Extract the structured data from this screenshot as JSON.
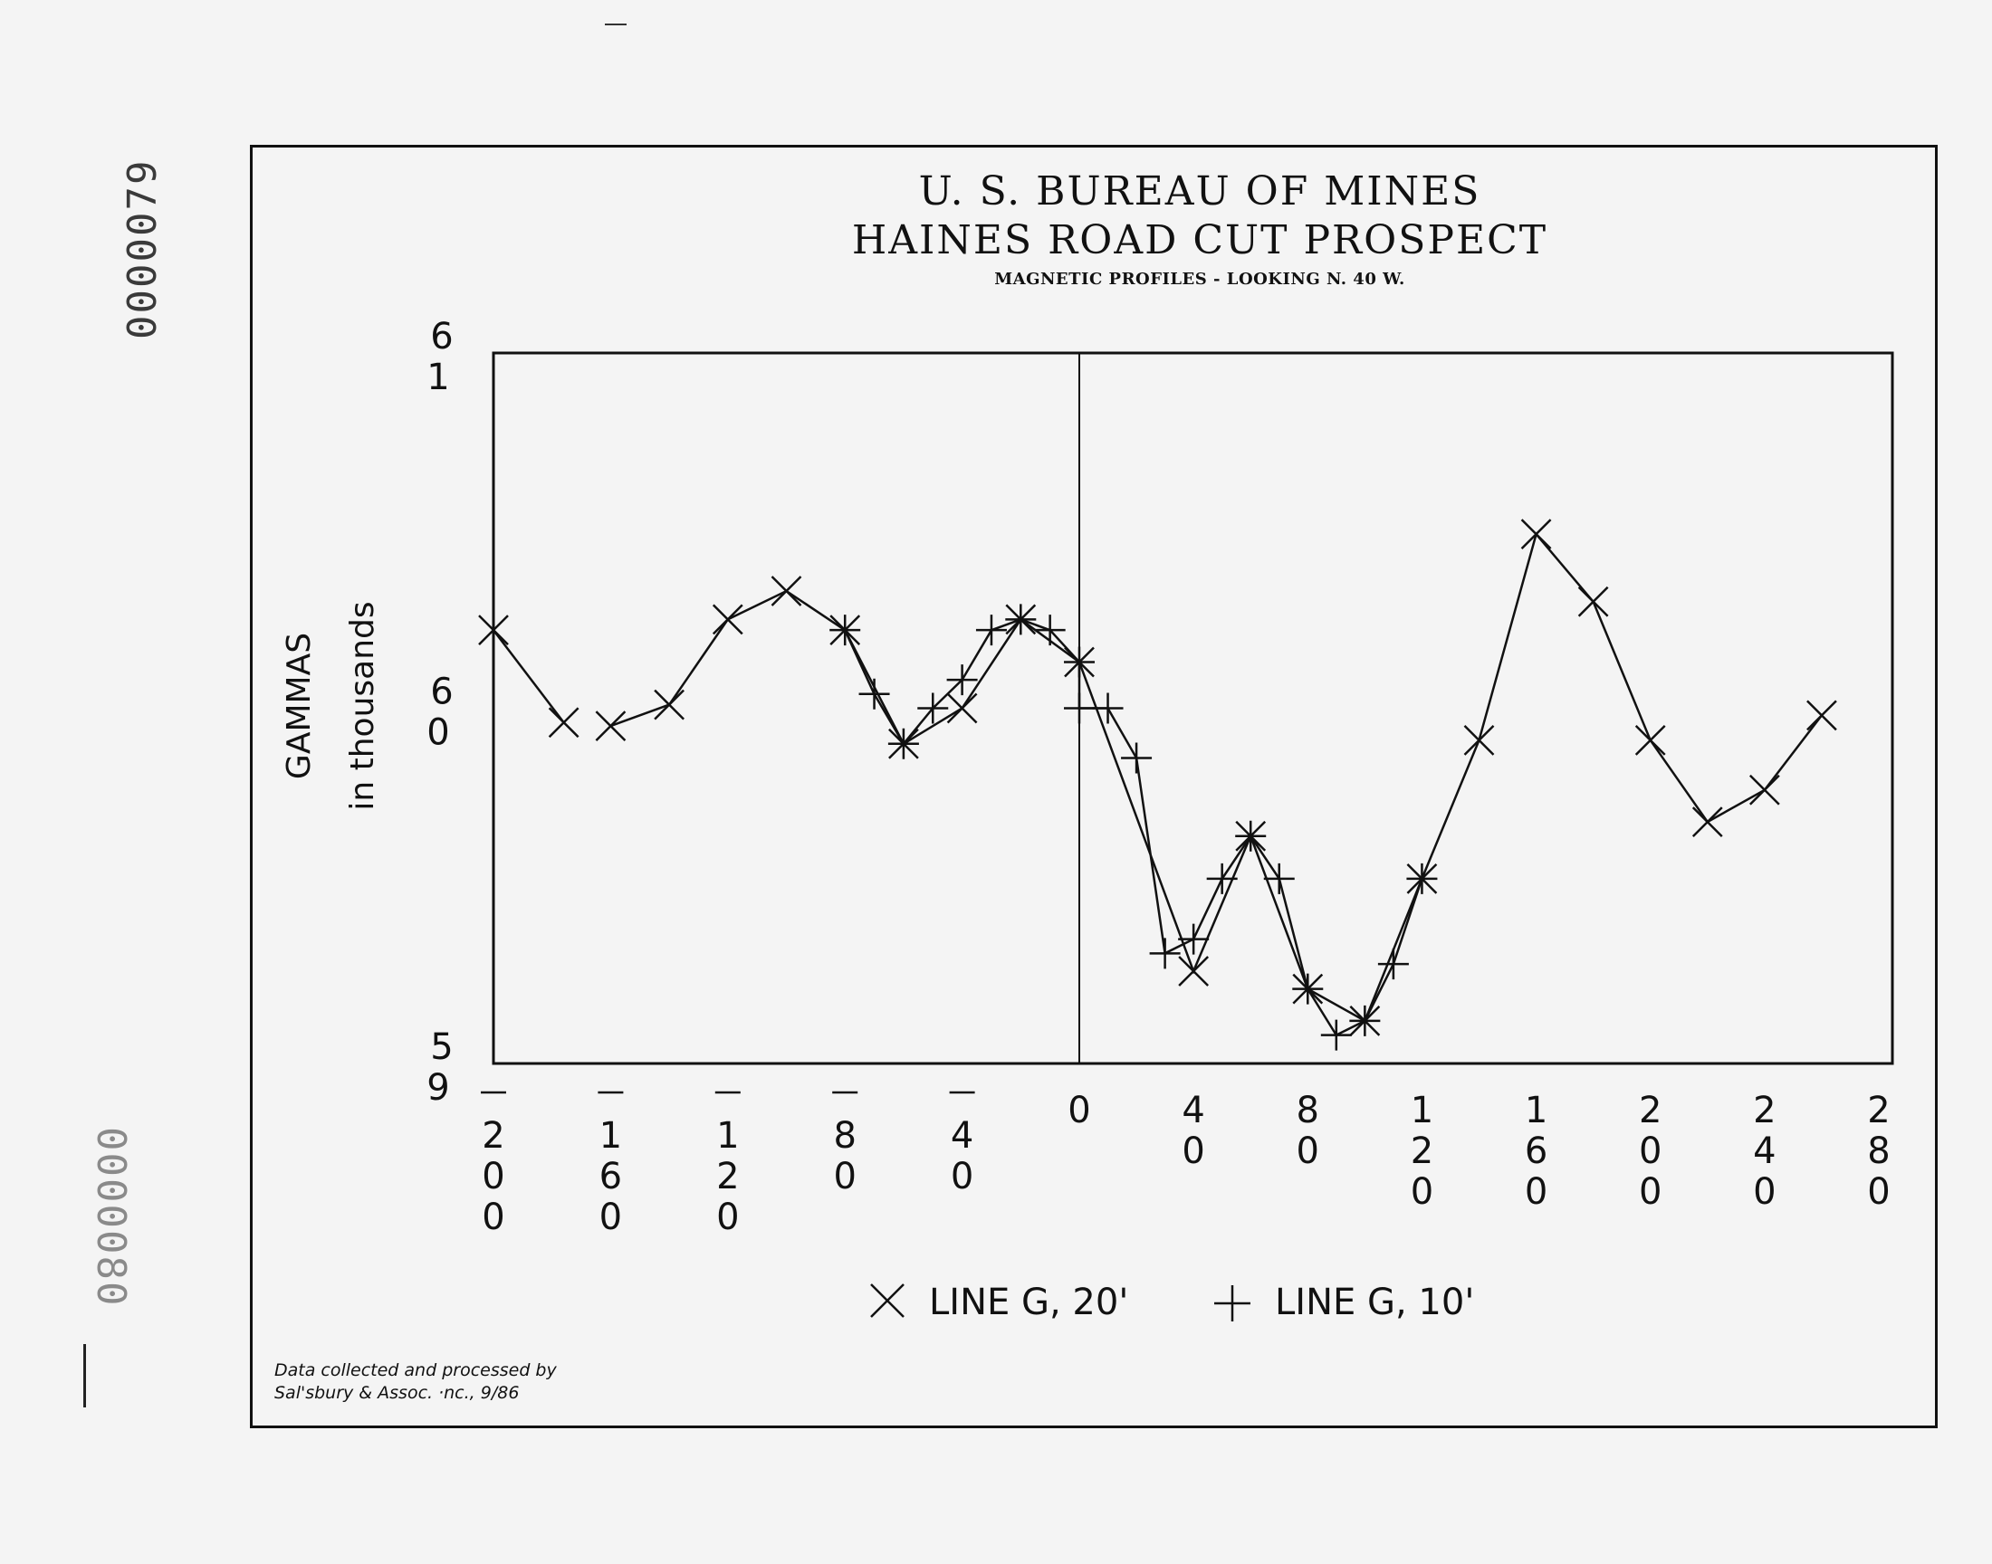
{
  "document": {
    "stamp_top": "0000079",
    "stamp_bottom": "0000080",
    "credit_line1": "Data collected and processed by",
    "credit_line2": "Sal'sbury & Assoc. ·nc., 9/86"
  },
  "chart_data": {
    "type": "line",
    "title": "U. S. BUREAU OF MINES",
    "subtitle": "HAINES ROAD CUT PROSPECT",
    "subtitle2": "MAGNETIC PROFILES - LOOKING N. 40 W.",
    "ylabel_line1": "GAMMAS",
    "ylabel_line2": "in thousands",
    "xlim": [
      -200,
      280
    ],
    "ylim": [
      59.0,
      61.0
    ],
    "grid": false,
    "y_tick_labels": [
      {
        "value": 61.0,
        "lines": [
          "6",
          "1"
        ]
      },
      {
        "value": 60.0,
        "lines": [
          "6",
          "0"
        ]
      },
      {
        "value": 59.0,
        "lines": [
          "5",
          "9"
        ]
      }
    ],
    "x_tick_labels": [
      {
        "value": -200,
        "lines": [
          "—",
          "2",
          "0",
          "0"
        ]
      },
      {
        "value": -160,
        "lines": [
          "—",
          "1",
          "6",
          "0"
        ]
      },
      {
        "value": -120,
        "lines": [
          "—",
          "1",
          "2",
          "0"
        ]
      },
      {
        "value": -80,
        "lines": [
          "—",
          "8",
          "0"
        ]
      },
      {
        "value": -40,
        "lines": [
          "—",
          "4",
          "0"
        ]
      },
      {
        "value": 0,
        "lines": [
          "0"
        ]
      },
      {
        "value": 40,
        "lines": [
          "4",
          "0"
        ]
      },
      {
        "value": 80,
        "lines": [
          "8",
          "0"
        ]
      },
      {
        "value": 120,
        "lines": [
          "1",
          "2",
          "0"
        ]
      },
      {
        "value": 160,
        "lines": [
          "1",
          "6",
          "0"
        ]
      },
      {
        "value": 200,
        "lines": [
          "2",
          "0",
          "0"
        ]
      },
      {
        "value": 240,
        "lines": [
          "2",
          "4",
          "0"
        ]
      },
      {
        "value": 280,
        "lines": [
          "2",
          "8",
          "0"
        ]
      }
    ],
    "series": [
      {
        "name": "LINE G, 20'",
        "marker": "x",
        "segments": [
          [
            [
              -200,
              60.22
            ],
            [
              -176,
              59.96
            ]
          ],
          [
            [
              -160,
              59.95
            ],
            [
              -140,
              60.01
            ],
            [
              -120,
              60.25
            ],
            [
              -100,
              60.33
            ],
            [
              -80,
              60.22
            ],
            [
              -60,
              59.9
            ],
            [
              -40,
              60.0
            ],
            [
              -20,
              60.25
            ],
            [
              0,
              60.13
            ],
            [
              40,
              59.26
            ],
            [
              60,
              59.64
            ],
            [
              80,
              59.21
            ],
            [
              100,
              59.12
            ],
            [
              120,
              59.52
            ],
            [
              140,
              59.91
            ],
            [
              160,
              60.49
            ],
            [
              180,
              60.3
            ],
            [
              200,
              59.91
            ],
            [
              220,
              59.68
            ],
            [
              240,
              59.77
            ],
            [
              260,
              59.98
            ]
          ]
        ]
      },
      {
        "name": "LINE G, 10'",
        "marker": "+",
        "segments": [
          [
            [
              -80,
              60.22
            ],
            [
              -70,
              60.04
            ],
            [
              -60,
              59.9
            ],
            [
              -50,
              60.0
            ],
            [
              -40,
              60.08
            ],
            [
              -30,
              60.22
            ],
            [
              -20,
              60.25
            ],
            [
              -10,
              60.22
            ],
            [
              0,
              60.13
            ],
            [
              0,
              60.0
            ],
            [
              10,
              60.0
            ],
            [
              20,
              59.86
            ],
            [
              30,
              59.31
            ],
            [
              40,
              59.35
            ],
            [
              50,
              59.52
            ],
            [
              60,
              59.64
            ],
            [
              70,
              59.52
            ],
            [
              80,
              59.21
            ],
            [
              90,
              59.08
            ],
            [
              100,
              59.12
            ],
            [
              110,
              59.28
            ],
            [
              120,
              59.52
            ]
          ]
        ]
      }
    ],
    "legend": {
      "placement": "bottom-center",
      "entries": [
        {
          "marker": "x",
          "label": "LINE G, 20'"
        },
        {
          "marker": "+",
          "label": "LINE G, 10'"
        }
      ]
    }
  }
}
